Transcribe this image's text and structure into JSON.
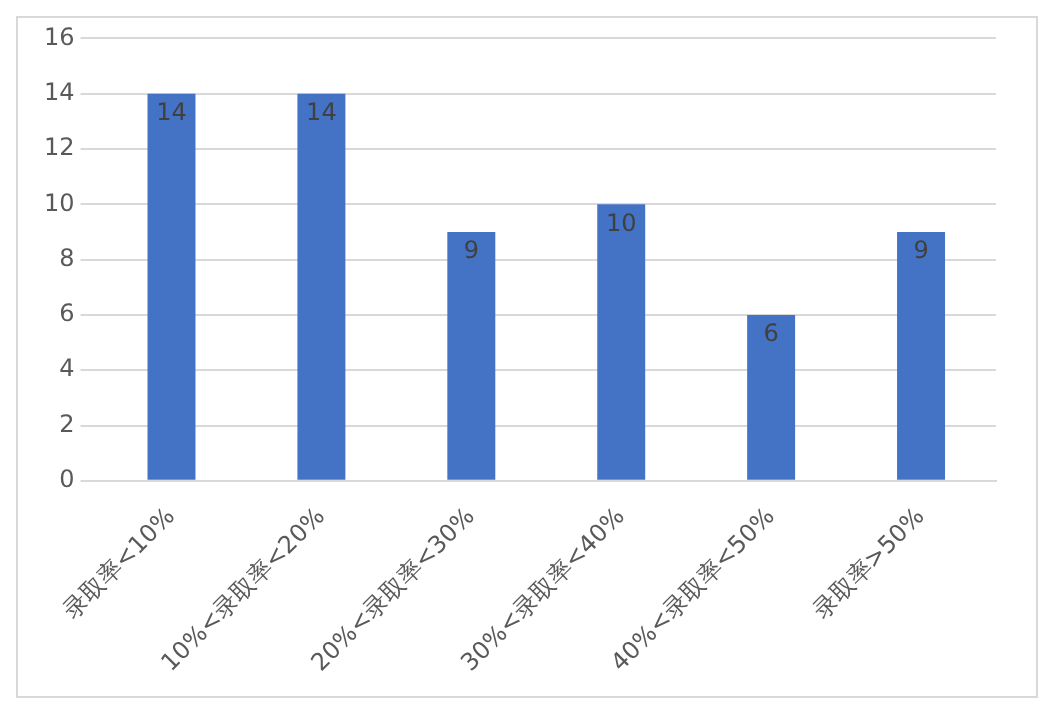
{
  "chart_data": {
    "type": "bar",
    "categories": [
      "录取率<10%",
      "10%<录取率<20%",
      "20%<录取率<30%",
      "30%<录取率<40%",
      "40%<录取率<50%",
      "录取率>50%"
    ],
    "values": [
      14,
      14,
      9,
      10,
      6,
      9
    ],
    "color": "#4472c4",
    "ylim": [
      0,
      16
    ],
    "yticks": [
      0,
      2,
      4,
      6,
      8,
      10,
      12,
      14,
      16
    ],
    "grid": "y",
    "data_labels": true,
    "legend": false
  }
}
